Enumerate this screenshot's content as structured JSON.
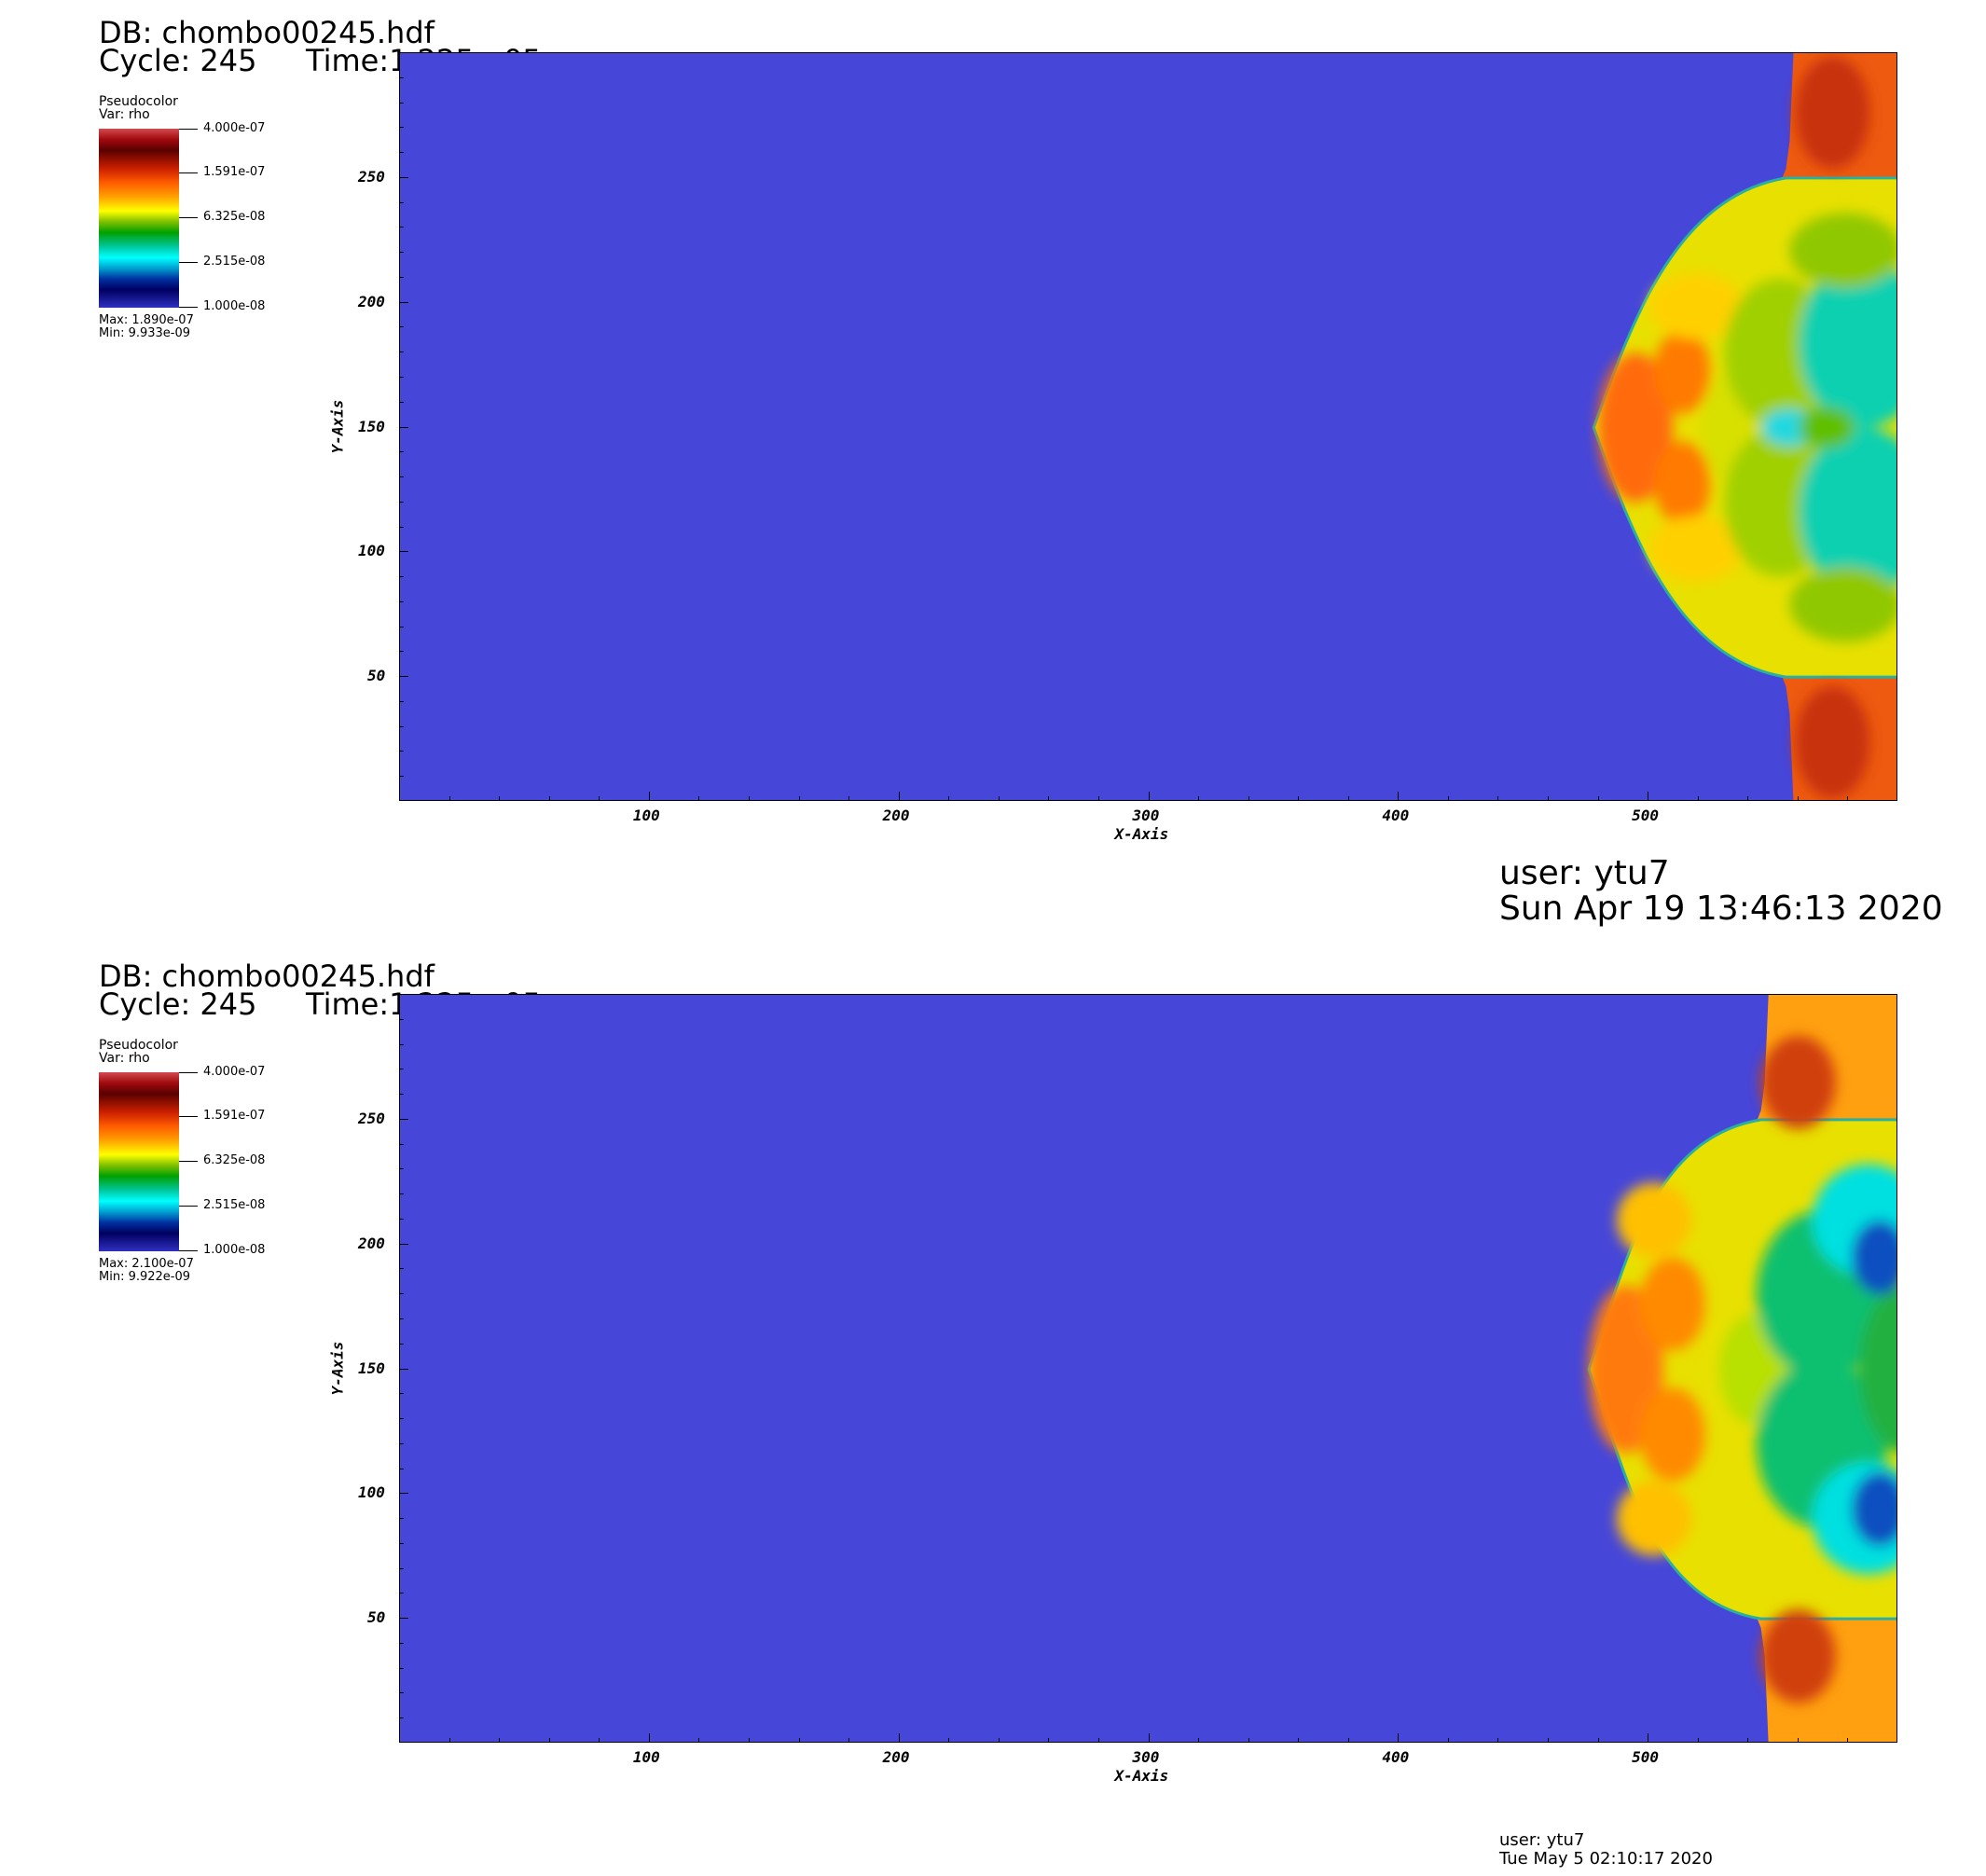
{
  "panels": [
    {
      "db": "DB: chombo00245.hdf",
      "cycle": "Cycle: 245",
      "time": "Time:1.225e-05",
      "legend": {
        "plot_type": "Pseudocolor",
        "var": "Var: rho",
        "ticks": [
          "4.000e-07",
          "1.591e-07",
          "6.325e-08",
          "2.515e-08",
          "1.000e-08"
        ],
        "max": "Max:  1.890e-07",
        "min": "Min:  9.933e-09"
      },
      "user": "user: ytu7",
      "date": "Sun Apr 19 13:46:13 2020"
    },
    {
      "db": "DB: chombo00245.hdf",
      "cycle": "Cycle: 245",
      "time": "Time:1.225e-05",
      "legend": {
        "plot_type": "Pseudocolor",
        "var": "Var: rho",
        "ticks": [
          "4.000e-07",
          "1.591e-07",
          "6.325e-08",
          "2.515e-08",
          "1.000e-08"
        ],
        "max": "Max:  2.100e-07",
        "min": "Min:  9.922e-09"
      },
      "user": "user: ytu7",
      "date": "Tue May  5 02:10:17 2020"
    }
  ],
  "chart_data": [
    {
      "type": "heatmap",
      "variable": "rho",
      "scale": "log",
      "colorbar_range": [
        1e-08,
        4e-07
      ],
      "data_max": 1.89e-07,
      "data_min": 9.933e-09,
      "xlabel": "X-Axis",
      "ylabel": "Y-Axis",
      "xlim": [
        0,
        600
      ],
      "ylim": [
        0,
        300
      ],
      "xticks": [
        100,
        200,
        300,
        400,
        500
      ],
      "yticks": [
        50,
        100,
        150,
        200,
        250
      ],
      "ambient_color": "#4646d9",
      "shock_front_x": {
        "apex": 478,
        "at_y_250": 555,
        "at_y_50": 555
      }
    },
    {
      "type": "heatmap",
      "variable": "rho",
      "scale": "log",
      "colorbar_range": [
        1e-08,
        4e-07
      ],
      "data_max": 2.1e-07,
      "data_min": 9.922e-09,
      "xlabel": "X-Axis",
      "ylabel": "Y-Axis",
      "xlim": [
        0,
        600
      ],
      "ylim": [
        0,
        300
      ],
      "xticks": [
        100,
        200,
        300,
        400,
        500
      ],
      "yticks": [
        50,
        100,
        150,
        200,
        250
      ],
      "ambient_color": "#4646d9",
      "shock_front_x": {
        "apex": 476,
        "at_y_250": 545,
        "at_y_50": 545
      }
    }
  ]
}
